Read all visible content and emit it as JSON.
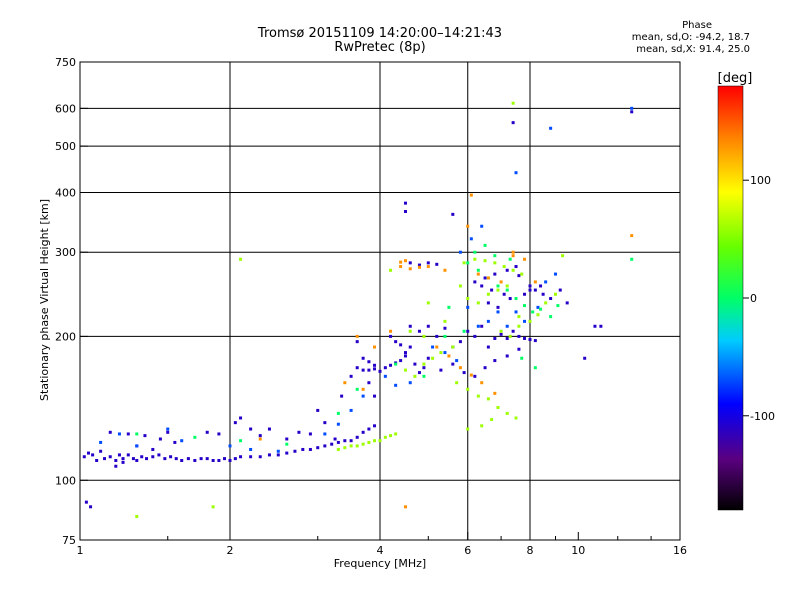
{
  "header": {
    "title": "Tromsø 20151109 14:20:00–14:21:43",
    "subtitle": "RwPretec (8p)"
  },
  "phase_box": {
    "label": "Phase",
    "line1": "mean, sd,O: -94.2, 18.7",
    "line2": "mean, sd,X:  91.4, 25.0"
  },
  "colorbar": {
    "unit_label": "[deg]",
    "tick_labels": [
      "100",
      "0",
      "-100"
    ],
    "ticks": [
      100,
      0,
      -100
    ],
    "range": [
      -180,
      180
    ]
  },
  "chart_data": {
    "type": "scatter",
    "xlabel": "Frequency [MHz]",
    "ylabel": "Stationary phase Virtual Height [km]",
    "xscale": "log",
    "yscale": "log",
    "xlim": [
      1,
      16
    ],
    "ylim": [
      75,
      750
    ],
    "xticks": [
      1,
      2,
      4,
      6,
      8,
      10,
      16
    ],
    "xtick_labels": [
      "1",
      "2",
      "4",
      "6",
      "8",
      "10",
      "16"
    ],
    "yticks": [
      75,
      100,
      200,
      300,
      400,
      500,
      600,
      750
    ],
    "ytick_labels": [
      "75",
      "100",
      "200",
      "300",
      "400",
      "500",
      "600",
      "750"
    ],
    "x_gridlines": [
      2,
      4,
      6,
      8
    ],
    "y_gridlines": [
      100,
      200,
      300,
      400,
      500,
      600
    ],
    "color_scale": "rainbow",
    "series": [
      {
        "phase": -110,
        "points": [
          [
            1.02,
            112
          ],
          [
            1.04,
            114
          ],
          [
            1.06,
            113
          ],
          [
            1.08,
            110
          ],
          [
            1.1,
            115
          ],
          [
            1.12,
            111
          ],
          [
            1.15,
            112
          ],
          [
            1.18,
            110
          ],
          [
            1.2,
            113
          ],
          [
            1.22,
            111
          ],
          [
            1.25,
            113
          ],
          [
            1.28,
            111
          ],
          [
            1.3,
            110
          ],
          [
            1.33,
            112
          ],
          [
            1.36,
            111
          ],
          [
            1.4,
            112
          ],
          [
            1.44,
            113
          ],
          [
            1.48,
            111
          ],
          [
            1.52,
            112
          ],
          [
            1.56,
            111
          ],
          [
            1.6,
            110
          ],
          [
            1.65,
            111
          ],
          [
            1.7,
            110
          ],
          [
            1.75,
            111
          ],
          [
            1.8,
            111
          ],
          [
            1.85,
            110
          ],
          [
            1.9,
            110
          ],
          [
            1.95,
            111
          ],
          [
            2.0,
            110
          ],
          [
            2.05,
            111
          ],
          [
            2.1,
            112
          ],
          [
            2.2,
            112
          ],
          [
            2.3,
            112
          ],
          [
            2.4,
            113
          ],
          [
            2.5,
            113
          ],
          [
            2.6,
            114
          ],
          [
            2.7,
            115
          ],
          [
            2.8,
            116
          ],
          [
            2.9,
            116
          ],
          [
            3.0,
            117
          ],
          [
            3.1,
            118
          ],
          [
            3.2,
            119
          ],
          [
            3.3,
            120
          ],
          [
            3.4,
            121
          ],
          [
            3.5,
            121
          ],
          [
            3.6,
            123
          ],
          [
            3.7,
            126
          ],
          [
            3.8,
            128
          ],
          [
            3.9,
            130
          ],
          [
            1.18,
            107
          ],
          [
            1.22,
            109
          ],
          [
            1.03,
            90
          ],
          [
            1.05,
            88
          ],
          [
            1.3,
            118
          ],
          [
            1.4,
            116
          ],
          [
            1.25,
            125
          ],
          [
            1.15,
            126
          ],
          [
            1.35,
            124
          ],
          [
            1.45,
            122
          ],
          [
            1.5,
            126
          ],
          [
            1.55,
            120
          ],
          [
            1.8,
            126
          ],
          [
            1.9,
            125
          ],
          [
            2.05,
            132
          ],
          [
            2.1,
            135
          ],
          [
            2.2,
            128
          ],
          [
            2.3,
            124
          ],
          [
            2.4,
            128
          ],
          [
            2.6,
            122
          ],
          [
            2.75,
            126
          ],
          [
            2.9,
            125
          ],
          [
            3.0,
            140
          ],
          [
            3.1,
            132
          ],
          [
            3.25,
            122
          ],
          [
            3.35,
            150
          ],
          [
            3.5,
            165
          ],
          [
            3.6,
            172
          ],
          [
            3.7,
            170
          ],
          [
            3.8,
            170
          ],
          [
            3.9,
            171
          ],
          [
            4.0,
            169
          ],
          [
            4.1,
            172
          ],
          [
            4.2,
            174
          ],
          [
            4.3,
            176
          ],
          [
            4.4,
            178
          ],
          [
            4.5,
            182
          ],
          [
            4.6,
            190
          ],
          [
            4.7,
            175
          ],
          [
            4.8,
            168
          ],
          [
            4.9,
            172
          ],
          [
            4.2,
            200
          ],
          [
            4.3,
            195
          ],
          [
            4.4,
            192
          ],
          [
            4.5,
            185
          ],
          [
            4.6,
            210
          ],
          [
            4.8,
            205
          ],
          [
            5.0,
            210
          ],
          [
            5.2,
            200
          ],
          [
            5.4,
            208
          ],
          [
            5.6,
            190
          ],
          [
            5.8,
            195
          ],
          [
            6.0,
            205
          ],
          [
            6.2,
            200
          ],
          [
            6.4,
            210
          ],
          [
            6.6,
            190
          ],
          [
            6.8,
            198
          ],
          [
            7.0,
            202
          ],
          [
            7.2,
            198
          ],
          [
            7.4,
            205
          ],
          [
            7.6,
            200
          ],
          [
            7.8,
            198
          ],
          [
            8.0,
            197
          ],
          [
            8.2,
            196
          ],
          [
            5.0,
            180
          ],
          [
            5.3,
            170
          ],
          [
            5.6,
            175
          ],
          [
            5.9,
            168
          ],
          [
            6.2,
            165
          ],
          [
            6.5,
            172
          ],
          [
            6.8,
            178
          ],
          [
            7.2,
            182
          ],
          [
            7.6,
            188
          ],
          [
            4.6,
            285
          ],
          [
            4.8,
            282
          ],
          [
            5.0,
            285
          ],
          [
            5.2,
            283
          ],
          [
            6.2,
            260
          ],
          [
            6.5,
            265
          ],
          [
            6.8,
            270
          ],
          [
            7.2,
            275
          ],
          [
            7.6,
            268
          ],
          [
            8.0,
            255
          ],
          [
            8.2,
            250
          ],
          [
            8.5,
            245
          ],
          [
            8.8,
            240
          ],
          [
            6.6,
            235
          ],
          [
            6.9,
            230
          ],
          [
            7.3,
            240
          ],
          [
            7.8,
            245
          ],
          [
            6.4,
            255
          ],
          [
            6.7,
            250
          ],
          [
            7.1,
            245
          ],
          [
            8.0,
            250
          ],
          [
            8.4,
            255
          ],
          [
            9.2,
            250
          ],
          [
            9.5,
            235
          ],
          [
            7.4,
            560
          ],
          [
            7.5,
            280
          ],
          [
            5.6,
            360
          ],
          [
            4.5,
            380
          ],
          [
            4.5,
            365
          ],
          [
            3.9,
            150
          ],
          [
            3.8,
            160
          ],
          [
            3.6,
            195
          ],
          [
            3.7,
            180
          ],
          [
            3.8,
            177
          ],
          [
            3.9,
            174
          ],
          [
            10.8,
            210
          ],
          [
            11.1,
            210
          ],
          [
            10.3,
            180
          ],
          [
            12.8,
            590
          ]
        ]
      },
      {
        "phase": -70,
        "points": [
          [
            1.1,
            120
          ],
          [
            1.2,
            125
          ],
          [
            1.3,
            118
          ],
          [
            1.5,
            128
          ],
          [
            1.6,
            121
          ],
          [
            2.0,
            118
          ],
          [
            2.2,
            116
          ],
          [
            2.5,
            115
          ],
          [
            3.1,
            125
          ],
          [
            3.3,
            131
          ],
          [
            3.5,
            140
          ],
          [
            3.7,
            150
          ],
          [
            4.1,
            165
          ],
          [
            4.3,
            158
          ],
          [
            4.6,
            160
          ],
          [
            5.1,
            190
          ],
          [
            5.4,
            185
          ],
          [
            5.7,
            178
          ],
          [
            6.0,
            230
          ],
          [
            6.3,
            210
          ],
          [
            6.6,
            215
          ],
          [
            6.9,
            225
          ],
          [
            7.2,
            210
          ],
          [
            7.5,
            225
          ],
          [
            7.8,
            215
          ],
          [
            8.3,
            230
          ],
          [
            8.6,
            260
          ],
          [
            9.0,
            270
          ],
          [
            6.1,
            320
          ],
          [
            6.4,
            340
          ],
          [
            5.8,
            300
          ],
          [
            7.5,
            440
          ],
          [
            8.8,
            545
          ],
          [
            12.8,
            600
          ]
        ]
      },
      {
        "phase": 0,
        "points": [
          [
            1.3,
            125
          ],
          [
            1.7,
            123
          ],
          [
            2.1,
            121
          ],
          [
            2.6,
            119
          ],
          [
            3.3,
            138
          ],
          [
            3.6,
            155
          ],
          [
            4.3,
            175
          ],
          [
            4.9,
            165
          ],
          [
            5.4,
            200
          ],
          [
            6.0,
            285
          ],
          [
            6.3,
            275
          ],
          [
            6.6,
            265
          ],
          [
            6.9,
            255
          ],
          [
            7.2,
            250
          ],
          [
            7.5,
            240
          ],
          [
            7.8,
            232
          ],
          [
            8.1,
            225
          ],
          [
            8.4,
            228
          ],
          [
            8.8,
            220
          ],
          [
            9.1,
            232
          ],
          [
            6.2,
            300
          ],
          [
            6.5,
            310
          ],
          [
            6.8,
            295
          ],
          [
            7.3,
            290
          ],
          [
            5.5,
            230
          ],
          [
            5.9,
            205
          ],
          [
            7.7,
            180
          ],
          [
            8.2,
            172
          ],
          [
            12.8,
            290
          ]
        ]
      },
      {
        "phase": 60,
        "points": [
          [
            3.3,
            116
          ],
          [
            3.4,
            117
          ],
          [
            3.5,
            118
          ],
          [
            3.6,
            118
          ],
          [
            3.7,
            119
          ],
          [
            3.8,
            120
          ],
          [
            3.9,
            121
          ],
          [
            4.0,
            121
          ],
          [
            4.1,
            123
          ],
          [
            4.2,
            124
          ],
          [
            4.3,
            125
          ],
          [
            4.5,
            170
          ],
          [
            4.7,
            165
          ],
          [
            4.9,
            175
          ],
          [
            5.1,
            180
          ],
          [
            5.3,
            185
          ],
          [
            5.6,
            190
          ],
          [
            5.9,
            285
          ],
          [
            6.2,
            290
          ],
          [
            6.5,
            288
          ],
          [
            6.8,
            285
          ],
          [
            7.1,
            280
          ],
          [
            7.4,
            275
          ],
          [
            7.7,
            270
          ],
          [
            6.0,
            240
          ],
          [
            6.3,
            235
          ],
          [
            6.6,
            245
          ],
          [
            6.9,
            250
          ],
          [
            7.2,
            255
          ],
          [
            7.6,
            220
          ],
          [
            8.0,
            215
          ],
          [
            8.3,
            222
          ],
          [
            8.6,
            235
          ],
          [
            9.0,
            245
          ],
          [
            5.7,
            160
          ],
          [
            6.0,
            155
          ],
          [
            6.3,
            150
          ],
          [
            6.6,
            148
          ],
          [
            6.9,
            142
          ],
          [
            7.2,
            138
          ],
          [
            7.5,
            135
          ],
          [
            7.0,
            205
          ],
          [
            7.3,
            200
          ],
          [
            7.6,
            210
          ],
          [
            5.0,
            235
          ],
          [
            5.4,
            215
          ],
          [
            5.8,
            255
          ],
          [
            4.9,
            200
          ],
          [
            4.6,
            205
          ],
          [
            6.4,
            130
          ],
          [
            6.7,
            134
          ],
          [
            1.3,
            84
          ],
          [
            1.85,
            88
          ],
          [
            2.1,
            290
          ],
          [
            4.2,
            275
          ],
          [
            9.3,
            295
          ],
          [
            7.4,
            615
          ],
          [
            6.0,
            128
          ]
        ]
      },
      {
        "phase": 130,
        "points": [
          [
            4.4,
            280
          ],
          [
            4.6,
            277
          ],
          [
            4.8,
            279
          ],
          [
            5.0,
            280
          ],
          [
            5.4,
            275
          ],
          [
            6.3,
            270
          ],
          [
            6.6,
            265
          ],
          [
            7.0,
            260
          ],
          [
            7.4,
            300
          ],
          [
            7.8,
            290
          ],
          [
            5.2,
            190
          ],
          [
            5.5,
            182
          ],
          [
            5.8,
            172
          ],
          [
            6.1,
            166
          ],
          [
            6.4,
            160
          ],
          [
            6.8,
            152
          ],
          [
            3.9,
            190
          ],
          [
            3.6,
            200
          ],
          [
            4.2,
            205
          ],
          [
            4.5,
            88
          ],
          [
            2.3,
            122
          ],
          [
            3.4,
            160
          ],
          [
            3.7,
            155
          ],
          [
            8.2,
            260
          ],
          [
            4.4,
            286
          ],
          [
            4.5,
            288
          ],
          [
            12.8,
            325
          ],
          [
            6.1,
            395
          ],
          [
            7.4,
            295
          ],
          [
            6.0,
            340
          ]
        ]
      }
    ]
  }
}
